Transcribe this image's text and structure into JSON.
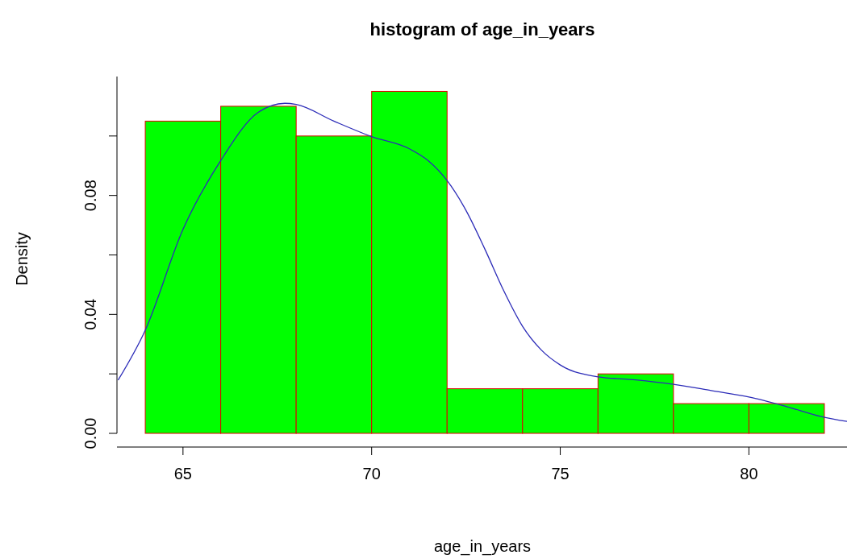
{
  "chart_data": {
    "type": "histogram",
    "title": "histogram of age_in_years",
    "xlabel": "age_in_years",
    "ylabel": "Density",
    "bins": [
      64,
      66,
      68,
      70,
      72,
      74,
      76,
      78,
      80,
      82
    ],
    "values": [
      0.105,
      0.11,
      0.1,
      0.115,
      0.015,
      0.015,
      0.02,
      0.01,
      0.01
    ],
    "color": "#00ff00",
    "series": [
      {
        "type": "line",
        "color": "#2c2cb8",
        "x": [
          63.28,
          64,
          65,
          66,
          67,
          67.7,
          68,
          69,
          70,
          71,
          71.5,
          72,
          72.5,
          73,
          73.5,
          74,
          74.5,
          75,
          76,
          77,
          78,
          79,
          80,
          81,
          82,
          82.6
        ],
        "values": [
          0.0179,
          0.0347,
          0.0686,
          0.0917,
          0.108,
          0.111,
          0.1106,
          0.105,
          0.0998,
          0.0957,
          0.0917,
          0.085,
          0.075,
          0.062,
          0.048,
          0.036,
          0.028,
          0.023,
          0.019,
          0.018,
          0.0165,
          0.0144,
          0.0122,
          0.009,
          0.0054,
          0.004
        ]
      }
    ],
    "xlim": [
      63.25,
      82.6
    ],
    "ylim": [
      0,
      0.12
    ],
    "xticks": [
      65,
      70,
      75,
      80
    ],
    "yticks": [
      "0.00",
      {
        "value": 0.02,
        "label": null
      },
      {
        "value": 0.04,
        "label": "0.04"
      },
      {
        "value": 0.06,
        "label": null
      },
      {
        "value": 0.08,
        "label": "0.08"
      },
      {
        "value": 0.1,
        "label": null
      }
    ]
  }
}
